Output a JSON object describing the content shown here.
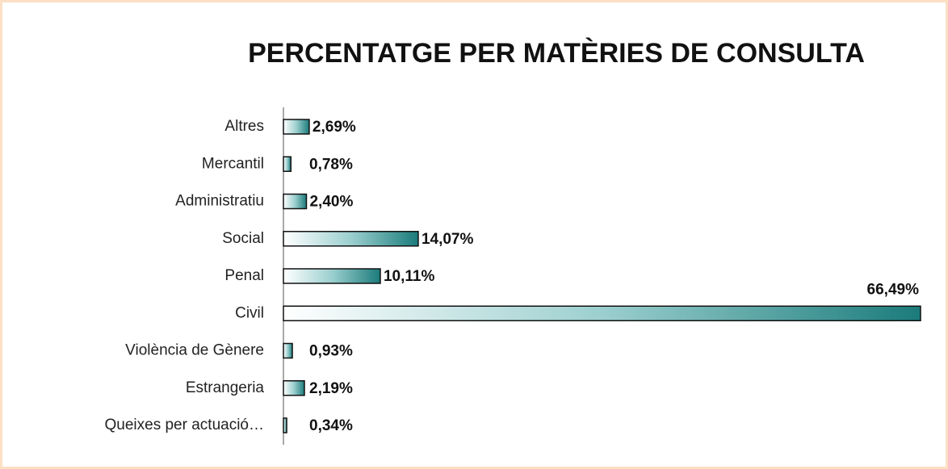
{
  "chart_data": {
    "type": "bar",
    "orientation": "horizontal",
    "title": "PERCENTATGE PER MATÈRIES DE CONSULTA",
    "categories": [
      "Altres",
      "Mercantil",
      "Administratiu",
      "Social",
      "Penal",
      "Civil",
      "Violència de Gènere",
      "Estrangeria",
      "Queixes per actuació…"
    ],
    "values": [
      2.69,
      0.78,
      2.4,
      14.07,
      10.11,
      66.49,
      0.93,
      2.19,
      0.34
    ],
    "value_labels": [
      "2,69%",
      "0,78%",
      "2,40%",
      "14,07%",
      "10,11%",
      "66,49%",
      "0,93%",
      "2,19%",
      "0,34%"
    ],
    "color": "#1b7b7b",
    "grid": false
  }
}
